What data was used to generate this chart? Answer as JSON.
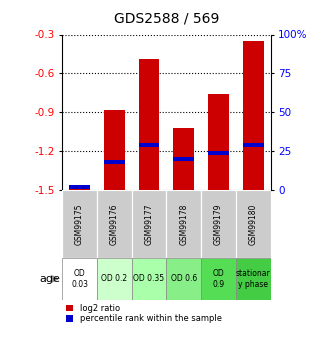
{
  "title": "GDS2588 / 569",
  "samples": [
    "GSM99175",
    "GSM99176",
    "GSM99177",
    "GSM99178",
    "GSM99179",
    "GSM99180"
  ],
  "age_labels": [
    "OD\n0.03",
    "OD 0.2",
    "OD 0.35",
    "OD 0.6",
    "OD\n0.9",
    "stationar\ny phase"
  ],
  "age_colors": [
    "#ffffff",
    "#ccffcc",
    "#aaffaa",
    "#88ee88",
    "#55dd55",
    "#44cc44"
  ],
  "log2_values": [
    -1.46,
    -0.88,
    -0.49,
    -1.02,
    -0.76,
    -0.35
  ],
  "percentile_values": [
    2,
    18,
    29,
    20,
    24,
    29
  ],
  "ylim_left": [
    -1.5,
    -0.3
  ],
  "ylim_right": [
    0,
    100
  ],
  "yticks_left": [
    -1.5,
    -1.2,
    -0.9,
    -0.6,
    -0.3
  ],
  "yticks_right": [
    0,
    25,
    50,
    75,
    100
  ],
  "bar_color": "#cc0000",
  "percentile_color": "#0000cc",
  "bar_width": 0.6,
  "bg_color_samples": "#cccccc",
  "legend_red": "log2 ratio",
  "legend_blue": "percentile rank within the sample",
  "age_label": "age"
}
